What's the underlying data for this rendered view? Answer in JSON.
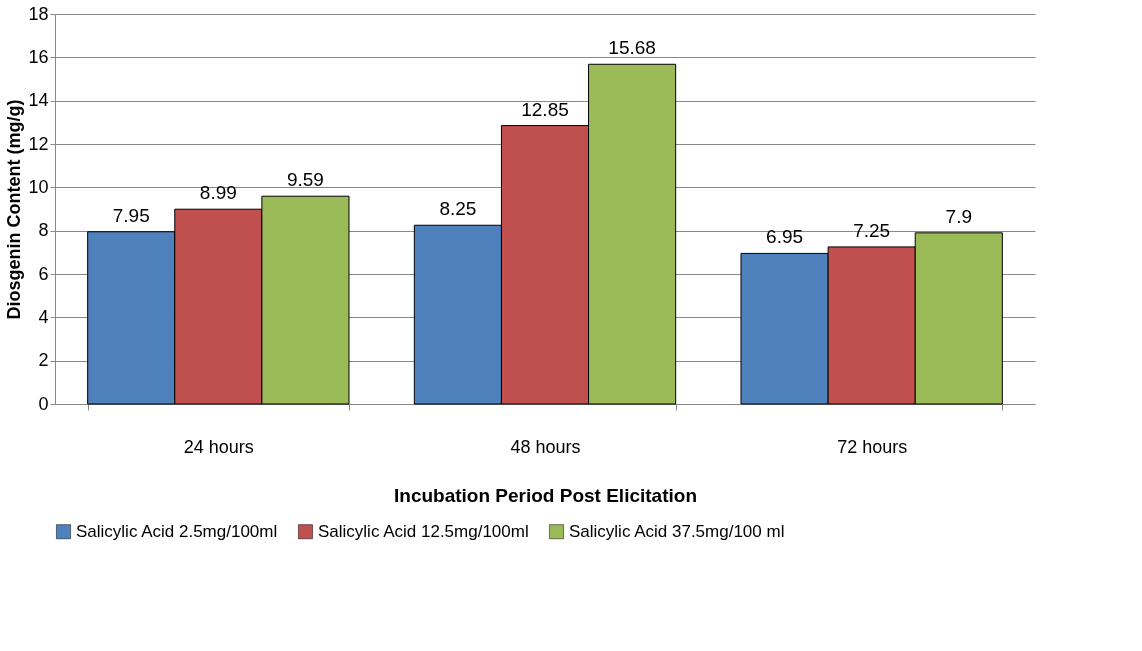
{
  "chart_data": {
    "type": "bar",
    "xlabel": "Incubation Period Post Elicitation",
    "ylabel": "Diosgenin Content (mg/g)",
    "categories": [
      "24 hours",
      "48 hours",
      "72 hours"
    ],
    "series": [
      {
        "name": "Salicylic Acid 2.5mg/100ml",
        "color": "#4f81bd",
        "values": [
          7.95,
          8.25,
          6.95
        ]
      },
      {
        "name": "Salicylic Acid 12.5mg/100ml",
        "color": "#c0504d",
        "values": [
          8.99,
          12.85,
          7.25
        ]
      },
      {
        "name": "Salicylic Acid 37.5mg/100 ml",
        "color": "#9bbb59",
        "values": [
          9.59,
          15.68,
          7.9
        ]
      }
    ],
    "ylim": [
      0,
      18
    ],
    "yticks": [
      0,
      2,
      4,
      6,
      8,
      10,
      12,
      14,
      16,
      18
    ],
    "grid": "y",
    "legend": "bottom",
    "data_labels": true
  }
}
